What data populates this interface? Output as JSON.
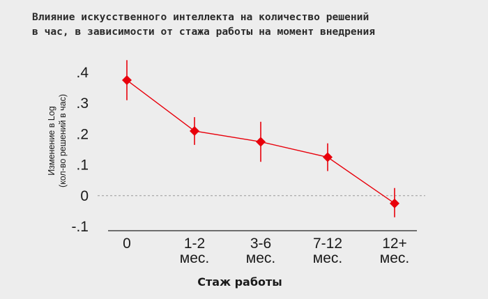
{
  "chart_data": {
    "type": "line",
    "title_lines": [
      "Влияние искусственного интеллекта на количество решений",
      "в час, в зависимости от стажа работы на момент внедрения"
    ],
    "ylabel_lines": [
      "Изменение в Log",
      "(кол-во решений в час)"
    ],
    "xlabel": "Стаж работы",
    "y_ticks": [
      {
        "value": 0.4,
        "label": ".4"
      },
      {
        "value": 0.3,
        "label": ".3"
      },
      {
        "value": 0.2,
        "label": ".2"
      },
      {
        "value": 0.1,
        "label": ".1"
      },
      {
        "value": 0.0,
        "label": "0"
      },
      {
        "value": -0.1,
        "label": "-.1"
      }
    ],
    "ylim": [
      -0.1,
      0.4
    ],
    "categories": [
      {
        "line1": "0",
        "line2": ""
      },
      {
        "line1": "1-2",
        "line2": "мес."
      },
      {
        "line1": "3-6",
        "line2": "мес."
      },
      {
        "line1": "7-12",
        "line2": "мес."
      },
      {
        "line1": "12+",
        "line2": "мес."
      }
    ],
    "series": [
      {
        "values": [
          0.375,
          0.21,
          0.175,
          0.125,
          -0.025
        ],
        "ci_low": [
          0.31,
          0.165,
          0.11,
          0.08,
          -0.07
        ],
        "ci_high": [
          0.44,
          0.255,
          0.24,
          0.17,
          0.025
        ],
        "color": "#e8000b"
      }
    ],
    "reference_line": {
      "y": 0,
      "style": "dashed"
    },
    "grid": false,
    "background_color": "#ededed"
  }
}
